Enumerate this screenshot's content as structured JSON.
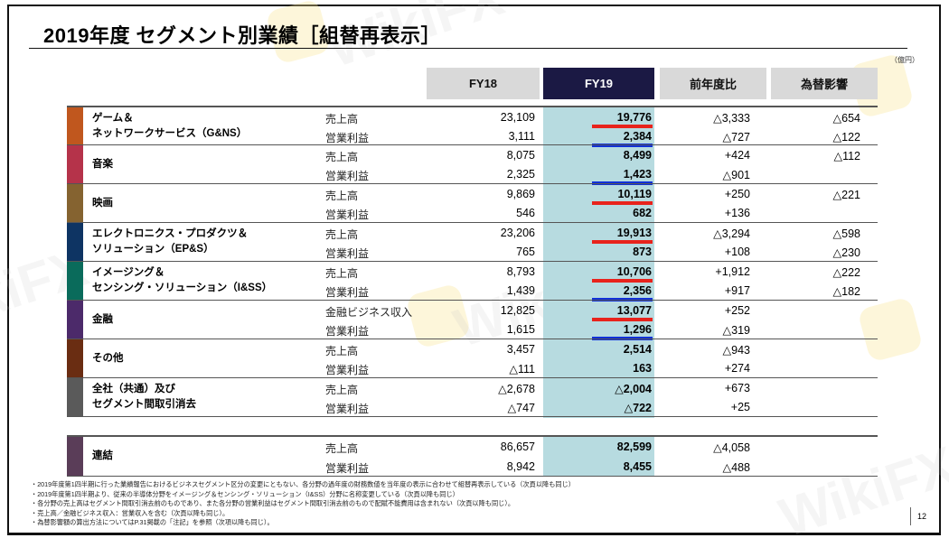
{
  "title": "2019年度 セグメント別業績［組替再表示］",
  "unit": "（億円）",
  "columns": {
    "fy18": "FY18",
    "fy19": "FY19",
    "yoy": "前年度比",
    "fx": "為替影響"
  },
  "colors": {
    "header_gray": "#d9d9d9",
    "header_navy": "#1b1944",
    "fy19_band": "#b7dbe0",
    "underline_red": "#e8231c",
    "underline_blue": "#1030d8"
  },
  "segments": [
    {
      "name_line1": "ゲーム＆",
      "name_line2": "ネットワークサービス（G&NS）",
      "color": "#c0571e",
      "rows": [
        {
          "metric": "売上高",
          "fy18": "23,109",
          "fy19": "19,776",
          "yoy": "△3,333",
          "fx": "△654",
          "underline": "red"
        },
        {
          "metric": "営業利益",
          "fy18": "3,111",
          "fy19": "2,384",
          "yoy": "△727",
          "fx": "△122",
          "underline": "blue"
        }
      ]
    },
    {
      "name_line1": "音楽",
      "name_line2": "",
      "color": "#b5334a",
      "rows": [
        {
          "metric": "売上高",
          "fy18": "8,075",
          "fy19": "8,499",
          "yoy": "+424",
          "fx": "△112",
          "underline": ""
        },
        {
          "metric": "営業利益",
          "fy18": "2,325",
          "fy19": "1,423",
          "yoy": "△901",
          "fx": "",
          "underline": "blue"
        }
      ]
    },
    {
      "name_line1": "映画",
      "name_line2": "",
      "color": "#856330",
      "rows": [
        {
          "metric": "売上高",
          "fy18": "9,869",
          "fy19": "10,119",
          "yoy": "+250",
          "fx": "△221",
          "underline": "red"
        },
        {
          "metric": "営業利益",
          "fy18": "546",
          "fy19": "682",
          "yoy": "+136",
          "fx": "",
          "underline": ""
        }
      ]
    },
    {
      "name_line1": "エレクトロニクス・プロダクツ＆",
      "name_line2": "ソリューション（EP&S）",
      "color": "#0e3463",
      "rows": [
        {
          "metric": "売上高",
          "fy18": "23,206",
          "fy19": "19,913",
          "yoy": "△3,294",
          "fx": "△598",
          "underline": "red"
        },
        {
          "metric": "営業利益",
          "fy18": "765",
          "fy19": "873",
          "yoy": "+108",
          "fx": "△230",
          "underline": ""
        }
      ]
    },
    {
      "name_line1": "イメージング＆",
      "name_line2": "センシング・ソリューション（I&SS）",
      "color": "#0a6b5b",
      "rows": [
        {
          "metric": "売上高",
          "fy18": "8,793",
          "fy19": "10,706",
          "yoy": "+1,912",
          "fx": "△222",
          "underline": "red"
        },
        {
          "metric": "営業利益",
          "fy18": "1,439",
          "fy19": "2,356",
          "yoy": "+917",
          "fx": "△182",
          "underline": "blue"
        }
      ]
    },
    {
      "name_line1": "金融",
      "name_line2": "",
      "color": "#4c2a6a",
      "rows": [
        {
          "metric": "金融ビジネス収入",
          "fy18": "12,825",
          "fy19": "13,077",
          "yoy": "+252",
          "fx": "",
          "underline": "red"
        },
        {
          "metric": "営業利益",
          "fy18": "1,615",
          "fy19": "1,296",
          "yoy": "△319",
          "fx": "",
          "underline": "blue"
        }
      ]
    },
    {
      "name_line1": "その他",
      "name_line2": "",
      "color": "#6a2d12",
      "rows": [
        {
          "metric": "売上高",
          "fy18": "3,457",
          "fy19": "2,514",
          "yoy": "△943",
          "fx": "",
          "underline": ""
        },
        {
          "metric": "営業利益",
          "fy18": "△111",
          "fy19": "163",
          "yoy": "+274",
          "fx": "",
          "underline": ""
        }
      ]
    },
    {
      "name_line1": "全社（共通）及び",
      "name_line2": "セグメント間取引消去",
      "color": "#5a5a5a",
      "rows": [
        {
          "metric": "売上高",
          "fy18": "△2,678",
          "fy19": "△2,004",
          "yoy": "+673",
          "fx": "",
          "underline": ""
        },
        {
          "metric": "営業利益",
          "fy18": "△747",
          "fy19": "△722",
          "yoy": "+25",
          "fx": "",
          "underline": ""
        }
      ]
    }
  ],
  "consolidated": {
    "name_line1": "連結",
    "color": "#5a3d58",
    "rows": [
      {
        "metric": "売上高",
        "fy18": "86,657",
        "fy19": "82,599",
        "yoy": "△4,058",
        "fx": ""
      },
      {
        "metric": "営業利益",
        "fy18": "8,942",
        "fy19": "8,455",
        "yoy": "△488",
        "fx": ""
      }
    ]
  },
  "notes": [
    "・2019年度第1四半期に行った業績報告におけるビジネスセグメント区分の変更にともない、各分野の過年度の財務数値を当年度の表示に合わせて組替再表示している（次頁以降も同じ）",
    "・2019年度第1四半期より、従来の半導体分野をイメージング＆センシング・ソリューション（I&SS）分野に名称変更している（次頁以降も同じ）",
    "・各分野の売上高はセグメント間取引消去前のものであり、また各分野の営業利益はセグメント間取引消去前のもので配賦不能費用は含まれない（次頁以降も同じ）。",
    "・売上高／金融ビジネス収入：営業収入を含む（次頁以降も同じ）。",
    "・為替影響額の算出方法についてはP.31掲載の「注記」を参照（次項以降も同じ）。"
  ],
  "page_number": "12",
  "watermark": "WikiFX"
}
